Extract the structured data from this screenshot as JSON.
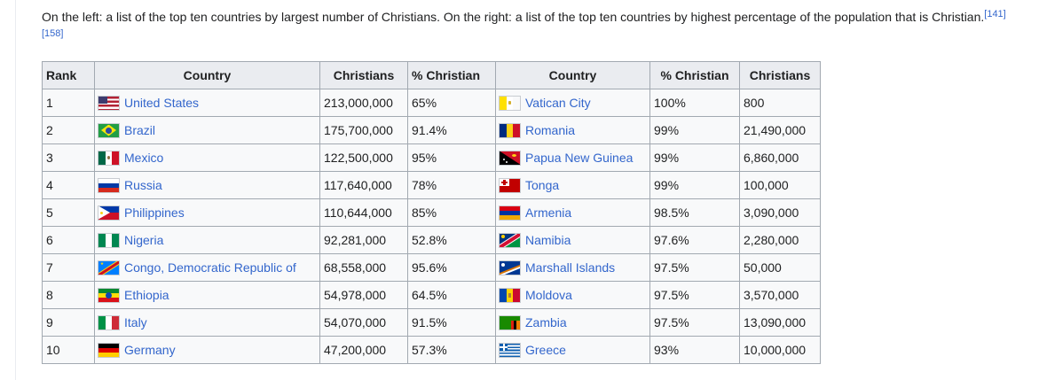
{
  "intro": {
    "text": "On the left: a list of the top ten countries by largest number of Christians. On the right: a list of the top ten countries by highest percentage of the population that is Christian.",
    "ref1": "[141]",
    "ref2": "[158]"
  },
  "headers": {
    "rank": "Rank",
    "country": "Country",
    "christians": "Christians",
    "pct": "% Christian",
    "country2": "Country",
    "pct2": "% Christian",
    "christians2": "Christians"
  },
  "rows": [
    {
      "rank": "1",
      "country": "United States",
      "christians": "213,000,000",
      "pct": "65%",
      "country2": "Vatican City",
      "pct2": "100%",
      "christians2": "800"
    },
    {
      "rank": "2",
      "country": "Brazil",
      "christians": "175,700,000",
      "pct": "91.4%",
      "country2": "Romania",
      "pct2": "99%",
      "christians2": "21,490,000"
    },
    {
      "rank": "3",
      "country": "Mexico",
      "christians": "122,500,000",
      "pct": "95%",
      "country2": "Papua New Guinea",
      "pct2": "99%",
      "christians2": "6,860,000"
    },
    {
      "rank": "4",
      "country": "Russia",
      "christians": "117,640,000",
      "pct": "78%",
      "country2": "Tonga",
      "pct2": "99%",
      "christians2": "100,000"
    },
    {
      "rank": "5",
      "country": "Philippines",
      "christians": "110,644,000",
      "pct": "85%",
      "country2": "Armenia",
      "pct2": "98.5%",
      "christians2": "3,090,000"
    },
    {
      "rank": "6",
      "country": "Nigeria",
      "christians": "92,281,000",
      "pct": "52.8%",
      "country2": "Namibia",
      "pct2": "97.6%",
      "christians2": "2,280,000"
    },
    {
      "rank": "7",
      "country": "Congo, Democratic Republic of",
      "christians": "68,558,000",
      "pct": "95.6%",
      "country2": "Marshall Islands",
      "pct2": "97.5%",
      "christians2": "50,000"
    },
    {
      "rank": "8",
      "country": "Ethiopia",
      "christians": "54,978,000",
      "pct": "64.5%",
      "country2": "Moldova",
      "pct2": "97.5%",
      "christians2": "3,570,000"
    },
    {
      "rank": "9",
      "country": "Italy",
      "christians": "54,070,000",
      "pct": "91.5%",
      "country2": "Zambia",
      "pct2": "97.5%",
      "christians2": "13,090,000"
    },
    {
      "rank": "10",
      "country": "Germany",
      "christians": "47,200,000",
      "pct": "57.3%",
      "country2": "Greece",
      "pct2": "93%",
      "christians2": "10,000,000"
    }
  ],
  "colors": {
    "link": "#3366cc",
    "header_bg": "#eaecf0",
    "table_bg": "#f8f9fa",
    "border": "#a2a9b1"
  }
}
